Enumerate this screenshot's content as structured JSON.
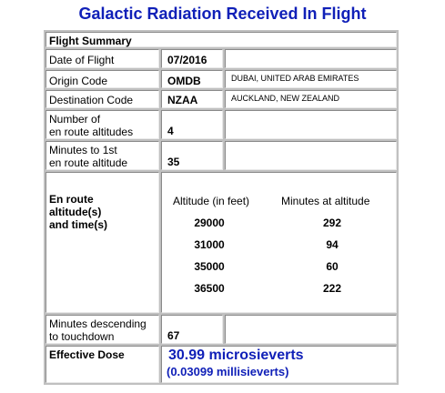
{
  "page_title": "Galactic Radiation Received In Flight",
  "summary_heading": "Flight Summary",
  "date_of_flight": {
    "label": "Date of Flight",
    "value": "07/2016"
  },
  "origin": {
    "label": "Origin Code",
    "code": "OMDB",
    "name": "DUBAI, UNITED ARAB EMIRATES"
  },
  "destination": {
    "label": "Destination Code",
    "code": "NZAA",
    "name": "AUCKLAND, NEW ZEALAND"
  },
  "altitudes_count": {
    "label_line1": "Number of",
    "label_line2": "en route altitudes",
    "value": "4"
  },
  "minutes_to_first": {
    "label_line1": "Minutes to 1st",
    "label_line2": "en route altitude",
    "value": "35"
  },
  "en_route": {
    "label_line1": "En route",
    "label_line2": "altitude(s)",
    "label_line3": "and time(s)",
    "col_altitude": "Altitude (in feet)",
    "col_minutes": "Minutes at altitude",
    "rows": [
      {
        "altitude": "29000",
        "minutes": "292"
      },
      {
        "altitude": "31000",
        "minutes": "94"
      },
      {
        "altitude": "35000",
        "minutes": "60"
      },
      {
        "altitude": "36500",
        "minutes": "222"
      }
    ]
  },
  "minutes_descending": {
    "label_line1": "Minutes descending",
    "label_line2": "to touchdown",
    "value": "67"
  },
  "effective_dose": {
    "label": "Effective Dose",
    "microsieverts": "30.99 microsieverts",
    "millisieverts": "(0.03099 millisieverts)"
  },
  "colors": {
    "title": "#1020b8",
    "dose": "#1020b8",
    "frame": "#c0c0c0"
  }
}
